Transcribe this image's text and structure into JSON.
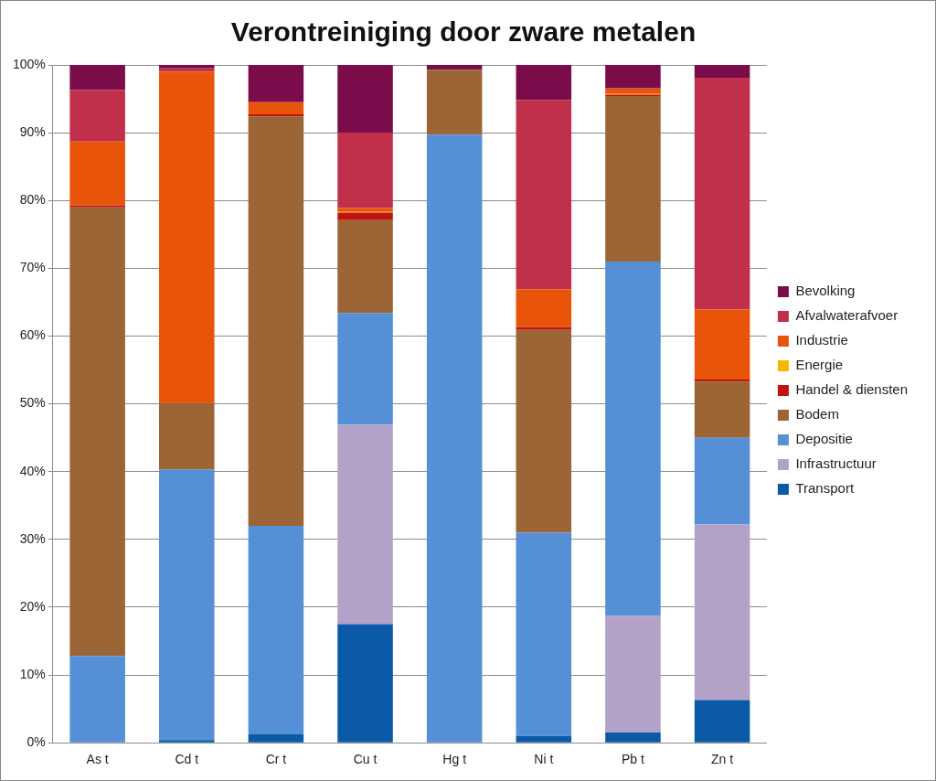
{
  "chart_data": {
    "type": "bar",
    "stacked": true,
    "title": "Verontreiniging door zware metalen",
    "categories": [
      "As t",
      "Cd t",
      "Cr t",
      "Cu t",
      "Hg t",
      "Ni t",
      "Pb t",
      "Zn t"
    ],
    "series": [
      {
        "name": "Transport",
        "color": "#0a5aa8",
        "values": [
          0,
          0.4,
          1.3,
          17.5,
          0,
          1.0,
          1.5,
          6.3
        ]
      },
      {
        "name": "Infrastructuur",
        "color": "#b3a2c8",
        "values": [
          0,
          0,
          0,
          29.4,
          0,
          0,
          17.2,
          25.9
        ]
      },
      {
        "name": "Depositie",
        "color": "#5590d6",
        "values": [
          12.8,
          39.9,
          30.7,
          16.5,
          89.7,
          30.0,
          52.3,
          12.8
        ]
      },
      {
        "name": "Bodem",
        "color": "#9b6535",
        "values": [
          66.2,
          9.7,
          60.4,
          13.7,
          9.6,
          29.9,
          24.4,
          8.3
        ]
      },
      {
        "name": "Handel & diensten",
        "color": "#c0140f",
        "values": [
          0.3,
          0.1,
          0.3,
          1.1,
          0,
          0.4,
          0.2,
          0.3
        ]
      },
      {
        "name": "Energie",
        "color": "#f5b800",
        "values": [
          0,
          0,
          0,
          0.1,
          0,
          0,
          0.1,
          0
        ]
      },
      {
        "name": "Industrie",
        "color": "#e8550a",
        "values": [
          9.4,
          48.9,
          1.8,
          0.6,
          0,
          5.6,
          0.8,
          10.3
        ]
      },
      {
        "name": "Afvalwaterafvoer",
        "color": "#c0304a",
        "values": [
          7.6,
          0.5,
          0,
          11.1,
          0,
          27.9,
          0.1,
          34.2
        ]
      },
      {
        "name": "Bevolking",
        "color": "#7b0c4b",
        "values": [
          3.7,
          0.5,
          5.5,
          10.0,
          0.7,
          5.2,
          3.4,
          1.9
        ]
      }
    ],
    "ylim": [
      0,
      100
    ],
    "yticks": [
      {
        "value": 0,
        "label": "0%"
      },
      {
        "value": 10,
        "label": "10%"
      },
      {
        "value": 20,
        "label": "20%"
      },
      {
        "value": 30,
        "label": "30%"
      },
      {
        "value": 40,
        "label": "40%"
      },
      {
        "value": 50,
        "label": "50%"
      },
      {
        "value": 60,
        "label": "60%"
      },
      {
        "value": 70,
        "label": "70%"
      },
      {
        "value": 80,
        "label": "80%"
      },
      {
        "value": 90,
        "label": "90%"
      },
      {
        "value": 100,
        "label": "100%"
      }
    ],
    "grid": true,
    "legend": "right"
  }
}
